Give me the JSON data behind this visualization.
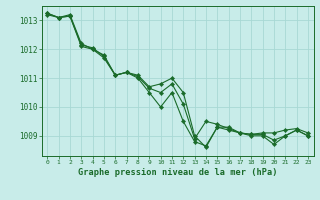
{
  "title": "Graphe pression niveau de la mer (hPa)",
  "background_color": "#c8ece9",
  "grid_color": "#a8d8d4",
  "line_color": "#1a6b2a",
  "xlim": [
    -0.5,
    23.5
  ],
  "ylim": [
    1008.3,
    1013.5
  ],
  "yticks": [
    1009,
    1010,
    1011,
    1012,
    1013
  ],
  "xticks": [
    0,
    1,
    2,
    3,
    4,
    5,
    6,
    7,
    8,
    9,
    10,
    11,
    12,
    13,
    14,
    15,
    16,
    17,
    18,
    19,
    20,
    21,
    22,
    23
  ],
  "series": [
    [
      1013.2,
      1013.1,
      1013.2,
      1012.2,
      1012.0,
      1011.7,
      1011.1,
      1011.2,
      1011.0,
      1010.5,
      1010.0,
      1010.5,
      1009.5,
      1008.8,
      1008.65,
      1009.3,
      1009.2,
      1009.1,
      1009.05,
      1009.05,
      1008.85,
      1009.0,
      1009.2,
      1009.0
    ],
    [
      1013.25,
      1013.1,
      1013.15,
      1012.15,
      1012.05,
      1011.75,
      1011.1,
      1011.2,
      1011.05,
      1010.65,
      1010.5,
      1010.8,
      1010.1,
      1008.9,
      1009.5,
      1009.4,
      1009.25,
      1009.1,
      1009.05,
      1009.1,
      1009.1,
      1009.2,
      1009.25,
      1009.1
    ],
    [
      1013.25,
      1013.1,
      1013.15,
      1012.1,
      1012.0,
      1011.8,
      1011.1,
      1011.2,
      1011.1,
      1010.7,
      1010.8,
      1011.0,
      1010.5,
      1009.0,
      1008.6,
      1009.3,
      1009.3,
      1009.1,
      1009.0,
      1009.0,
      1008.7,
      1009.0,
      1009.2,
      1009.0
    ]
  ]
}
